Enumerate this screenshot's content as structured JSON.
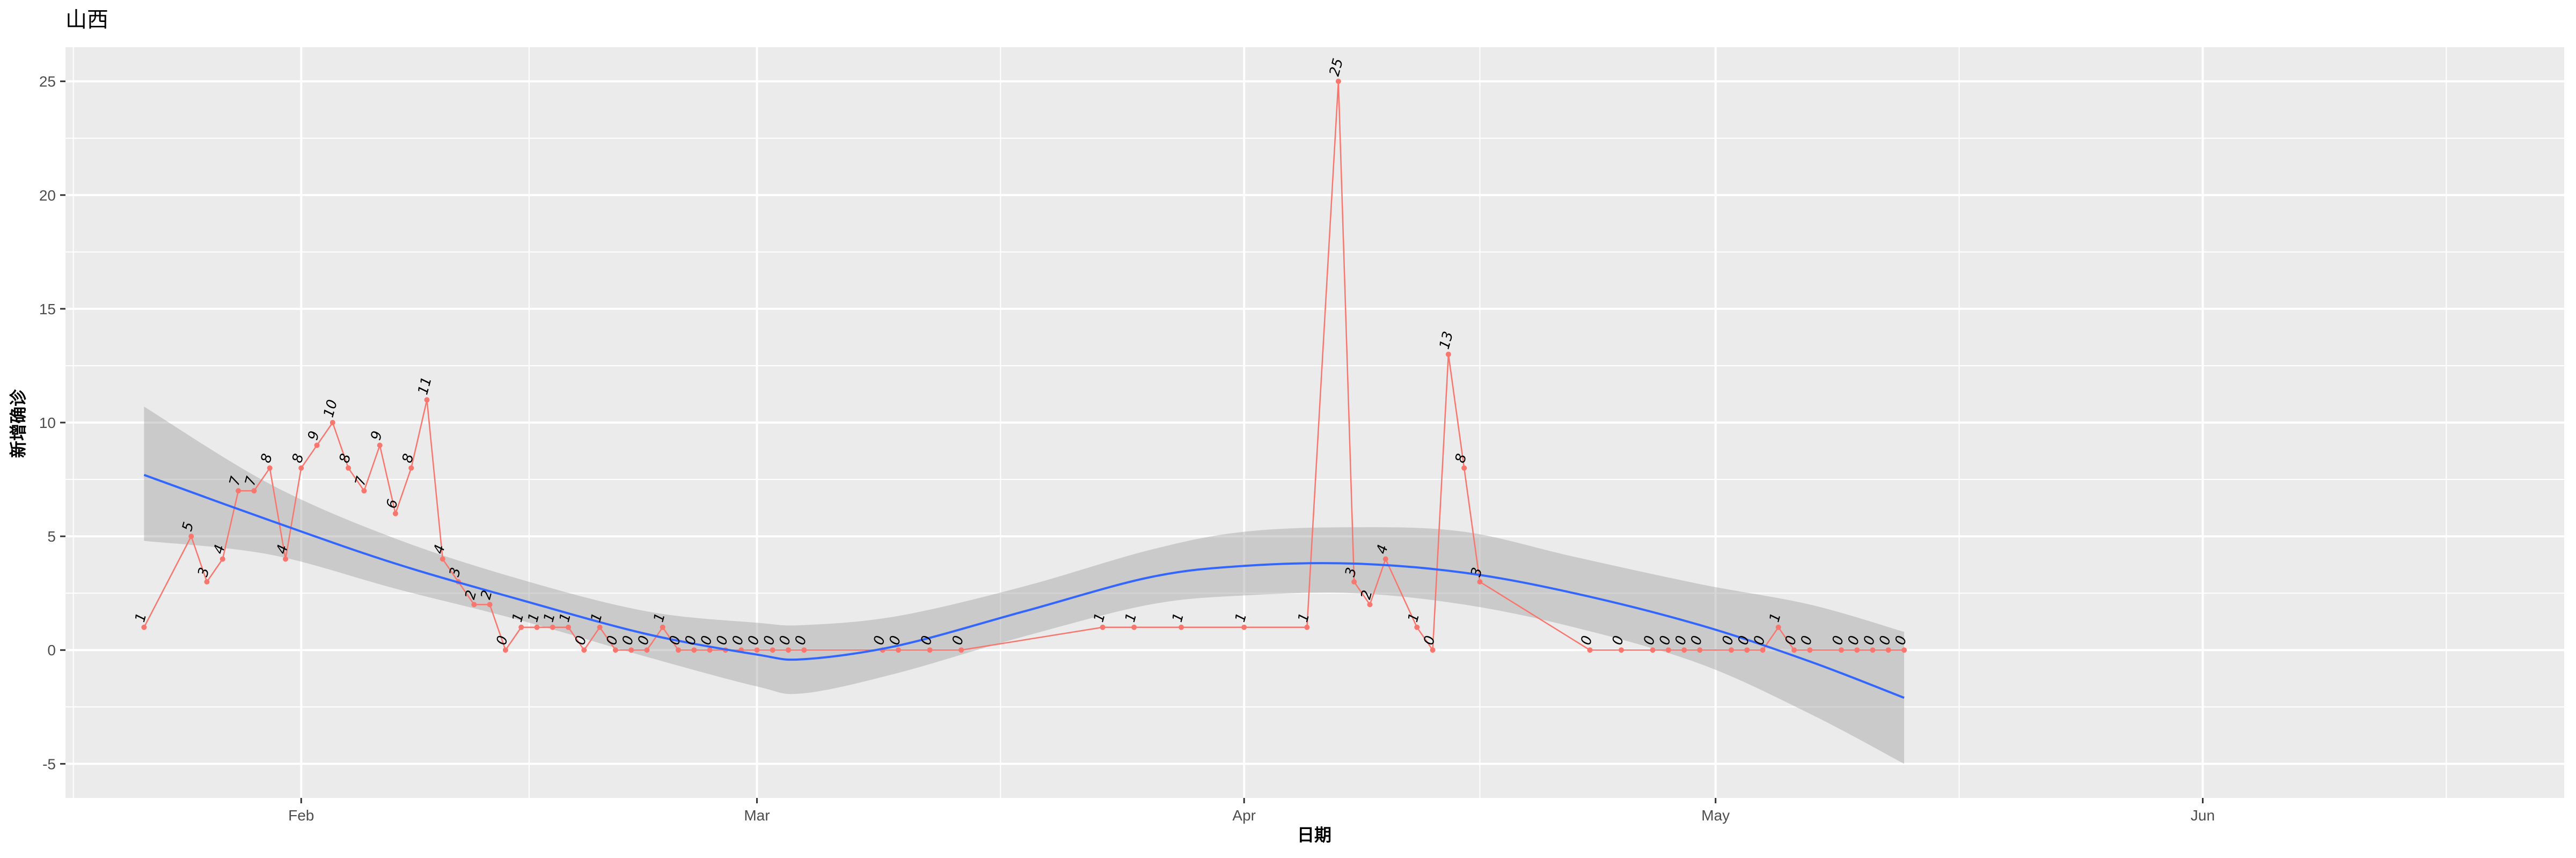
{
  "chart_data": {
    "type": "line",
    "title": "山西",
    "xlabel": "日期",
    "ylabel": "新增确诊",
    "x_ticks": [
      {
        "label": "Feb",
        "date": "2020-02-01"
      },
      {
        "label": "Mar",
        "date": "2020-03-01"
      },
      {
        "label": "Apr",
        "date": "2020-04-01"
      },
      {
        "label": "May",
        "date": "2020-05-01"
      },
      {
        "label": "Jun",
        "date": "2020-06-01"
      }
    ],
    "y_ticks": [
      -5,
      0,
      5,
      10,
      15,
      20,
      25
    ],
    "xlim": [
      "2020-01-17",
      "2020-06-24"
    ],
    "ylim": [
      -6.5,
      26.5
    ],
    "grid": true,
    "legend": "none",
    "colors": {
      "panel": "#ebebeb",
      "grid": "#ffffff",
      "series": "#f8766d",
      "smooth": "#3366ff",
      "ribbon": "#999999"
    },
    "series": [
      {
        "x": [
          "2020-01-22",
          "2020-01-25",
          "2020-01-26",
          "2020-01-27",
          "2020-01-28",
          "2020-01-29",
          "2020-01-30",
          "2020-01-31",
          "2020-02-01",
          "2020-02-02",
          "2020-02-03",
          "2020-02-04",
          "2020-02-05",
          "2020-02-06",
          "2020-02-07",
          "2020-02-08",
          "2020-02-09",
          "2020-02-10",
          "2020-02-11",
          "2020-02-12",
          "2020-02-13",
          "2020-02-14",
          "2020-02-15",
          "2020-02-16",
          "2020-02-17",
          "2020-02-18",
          "2020-02-19",
          "2020-02-20",
          "2020-02-21",
          "2020-02-22",
          "2020-02-23",
          "2020-02-24",
          "2020-02-25",
          "2020-02-26",
          "2020-02-27",
          "2020-02-28",
          "2020-02-29",
          "2020-03-01",
          "2020-03-02",
          "2020-03-03",
          "2020-03-04",
          "2020-03-09",
          "2020-03-10",
          "2020-03-12",
          "2020-03-14",
          "2020-03-23",
          "2020-03-25",
          "2020-03-28",
          "2020-04-01",
          "2020-04-05",
          "2020-04-07",
          "2020-04-08",
          "2020-04-09",
          "2020-04-10",
          "2020-04-12",
          "2020-04-13",
          "2020-04-14",
          "2020-04-15",
          "2020-04-16",
          "2020-04-23",
          "2020-04-25",
          "2020-04-27",
          "2020-04-28",
          "2020-04-29",
          "2020-04-30",
          "2020-05-02",
          "2020-05-03",
          "2020-05-04",
          "2020-05-05",
          "2020-05-06",
          "2020-05-07",
          "2020-05-09",
          "2020-05-10",
          "2020-05-11",
          "2020-05-12",
          "2020-05-13"
        ],
        "values": [
          1,
          5,
          3,
          4,
          7,
          7,
          8,
          4,
          8,
          9,
          10,
          8,
          7,
          9,
          6,
          8,
          11,
          4,
          3,
          2,
          2,
          0,
          1,
          1,
          1,
          1,
          0,
          1,
          0,
          0,
          0,
          1,
          0,
          0,
          0,
          0,
          0,
          0,
          0,
          0,
          0,
          0,
          0,
          0,
          0,
          1,
          1,
          1,
          1,
          1,
          25,
          3,
          2,
          4,
          1,
          0,
          13,
          8,
          3,
          0,
          0,
          0,
          0,
          0,
          0,
          0,
          0,
          0,
          1,
          0,
          0,
          0,
          0,
          0,
          0,
          0
        ]
      }
    ],
    "smooth": {
      "method": "loess",
      "x": [
        "2020-01-22",
        "2020-01-30",
        "2020-02-07",
        "2020-02-15",
        "2020-02-23",
        "2020-03-01",
        "2020-03-04",
        "2020-03-10",
        "2020-03-18",
        "2020-03-26",
        "2020-04-01",
        "2020-04-08",
        "2020-04-15",
        "2020-04-22",
        "2020-04-30",
        "2020-05-07",
        "2020-05-13"
      ],
      "y": [
        7.7,
        5.7,
        3.8,
        2.2,
        0.7,
        -0.2,
        -0.4,
        0.2,
        1.7,
        3.2,
        3.7,
        3.8,
        3.4,
        2.5,
        1.1,
        -0.5,
        -2.1
      ],
      "lower": [
        4.8,
        4.2,
        2.7,
        1.3,
        -0.3,
        -1.6,
        -1.9,
        -1.0,
        0.6,
        2.0,
        2.4,
        2.5,
        2.0,
        1.0,
        -0.6,
        -2.8,
        -5.0
      ],
      "upper": [
        10.7,
        7.3,
        4.9,
        3.1,
        1.7,
        1.2,
        1.1,
        1.5,
        2.8,
        4.4,
        5.2,
        5.4,
        5.2,
        4.1,
        2.9,
        2.0,
        0.8
      ]
    }
  }
}
